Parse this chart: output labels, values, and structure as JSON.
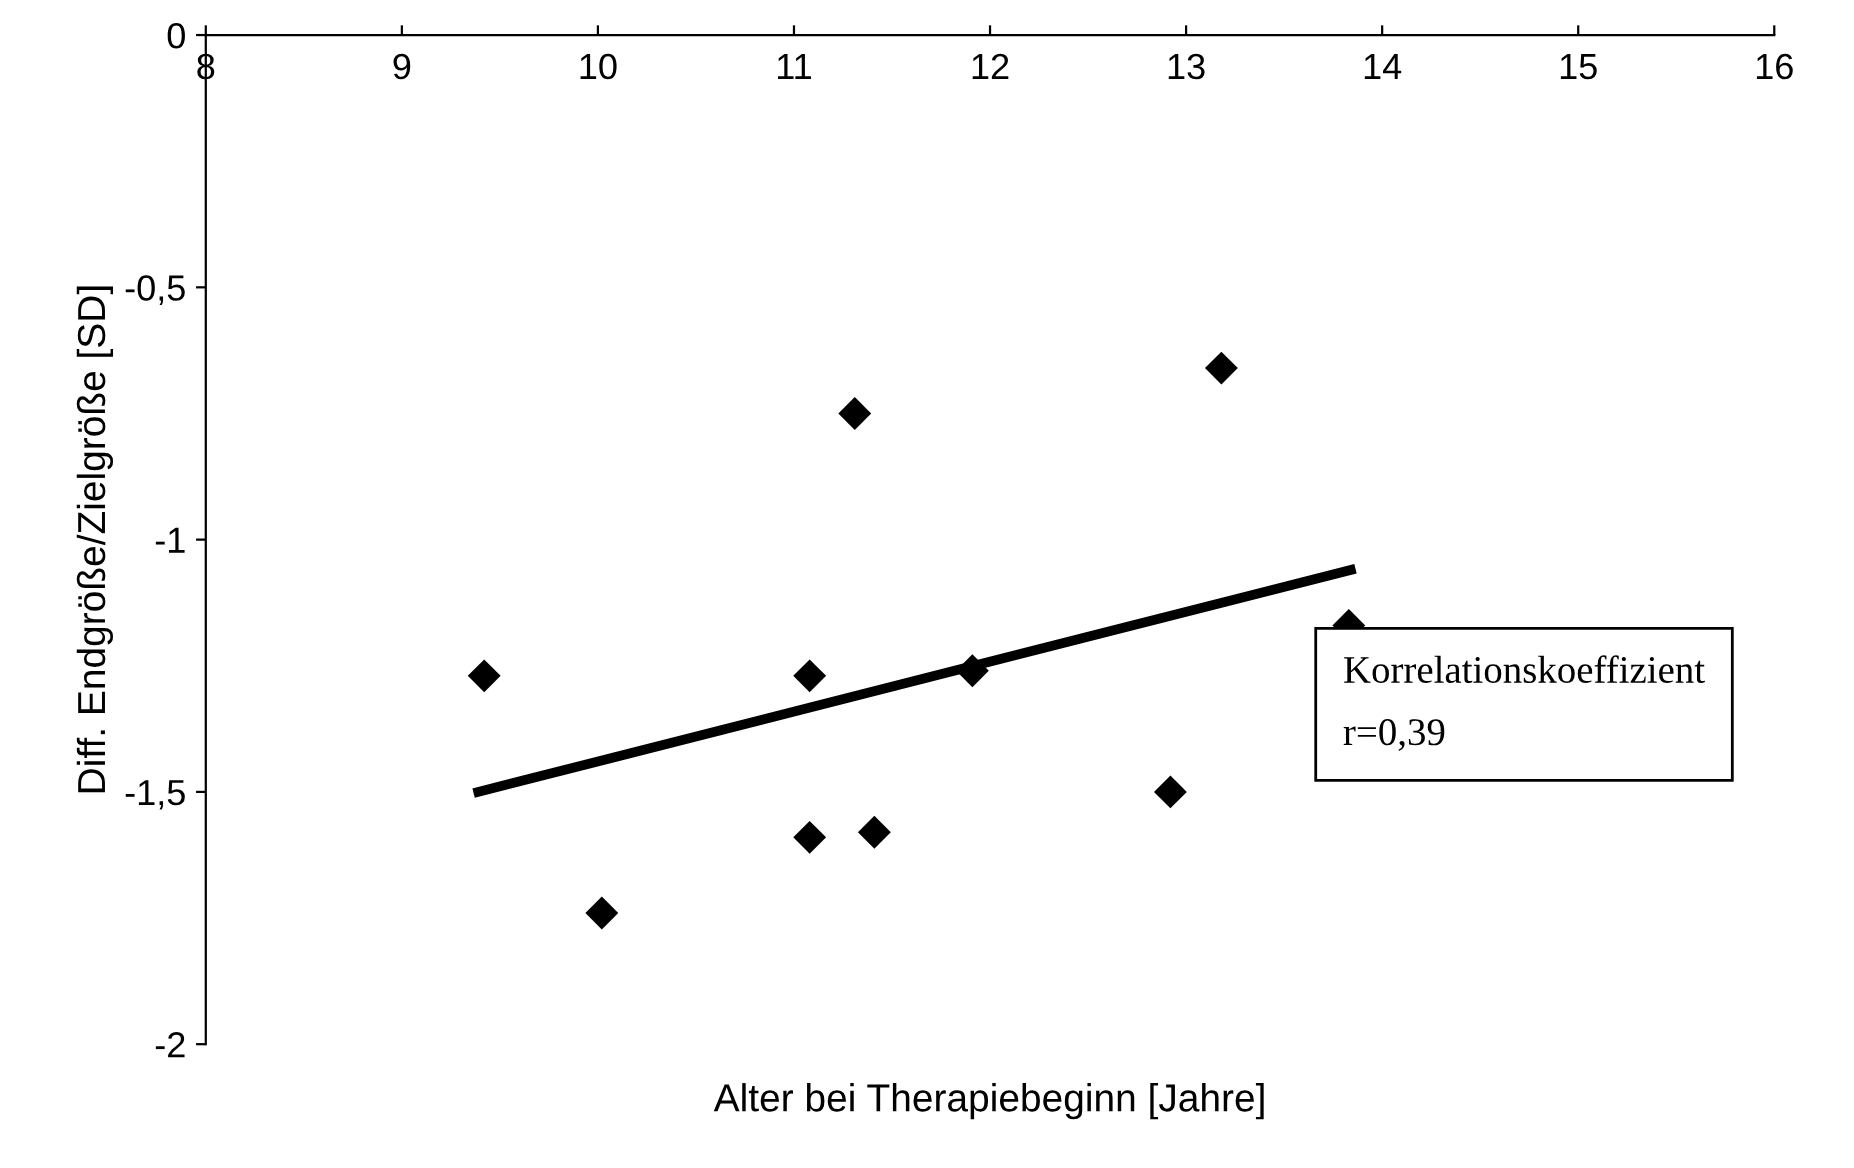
{
  "chart_data": {
    "type": "scatter",
    "xlabel": "Alter bei Therapiebeginn [Jahre]",
    "ylabel": "Diff. Endgröße/Zielgröße [SD]",
    "annotations": [
      "Korrelationskoeffizient\nr=0,39"
    ],
    "series": [
      {
        "color": "#000000",
        "marker": "diamond",
        "x": [
          9.42,
          10.02,
          11.08,
          11.08,
          11.41,
          11.31,
          11.91,
          12.92,
          13.18,
          13.83
        ],
        "values": [
          -1.27,
          -1.74,
          -1.27,
          -1.59,
          -1.58,
          -0.75,
          -1.26,
          -1.5,
          -0.66,
          -1.17
        ]
      },
      {
        "type": "line",
        "color": "#000000",
        "marker": "none",
        "line_style": "solid",
        "x": [
          9.39,
          13.84
        ],
        "values": [
          -1.5,
          -1.06
        ]
      }
    ],
    "xlim": [
      8,
      16
    ],
    "xticks": [
      8,
      9,
      10,
      11,
      12,
      13,
      14,
      15,
      16
    ],
    "ylim": [
      -2,
      0
    ],
    "yticks": [
      0,
      {
        "value": -0.5,
        "label": "-0,5"
      },
      -1,
      {
        "value": -1.5,
        "label": "-1,5"
      },
      -2
    ],
    "grid": false,
    "legend": false
  }
}
